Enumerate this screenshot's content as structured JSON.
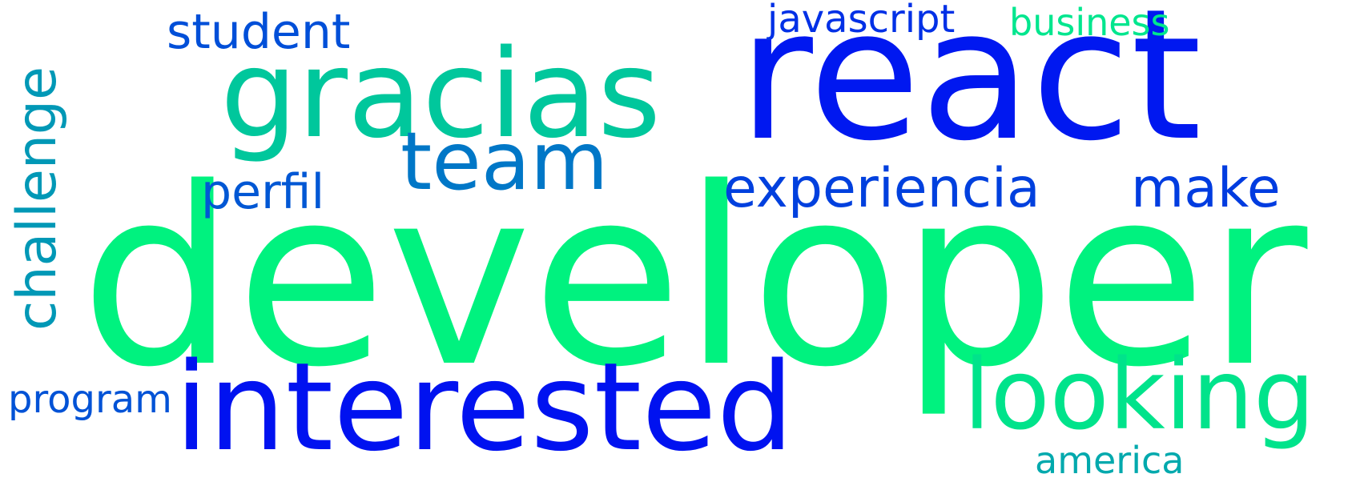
{
  "word_cloud": {
    "background": "#ffffff",
    "words": [
      {
        "id": "developer",
        "text": "developer",
        "color": "#00f27f"
      },
      {
        "id": "react",
        "text": "react",
        "color": "#0018f0"
      },
      {
        "id": "gracias",
        "text": "gracias",
        "color": "#00c79c"
      },
      {
        "id": "interested",
        "text": "interested",
        "color": "#0012f0"
      },
      {
        "id": "looking",
        "text": "looking",
        "color": "#00e38b"
      },
      {
        "id": "team",
        "text": "team",
        "color": "#0077c7"
      },
      {
        "id": "experiencia",
        "text": "experiencia",
        "color": "#0040de"
      },
      {
        "id": "make",
        "text": "make",
        "color": "#003ce0"
      },
      {
        "id": "perfil",
        "text": "perfil",
        "color": "#0057d4"
      },
      {
        "id": "student",
        "text": "student",
        "color": "#004fd8"
      },
      {
        "id": "challenge",
        "text": "challenge",
        "color": "#0098b6"
      },
      {
        "id": "javascript",
        "text": "javascript",
        "color": "#0030e6"
      },
      {
        "id": "business",
        "text": "business",
        "color": "#00e68e"
      },
      {
        "id": "program",
        "text": "program",
        "color": "#0052d6"
      },
      {
        "id": "america",
        "text": "america",
        "color": "#00a9ad"
      }
    ]
  }
}
